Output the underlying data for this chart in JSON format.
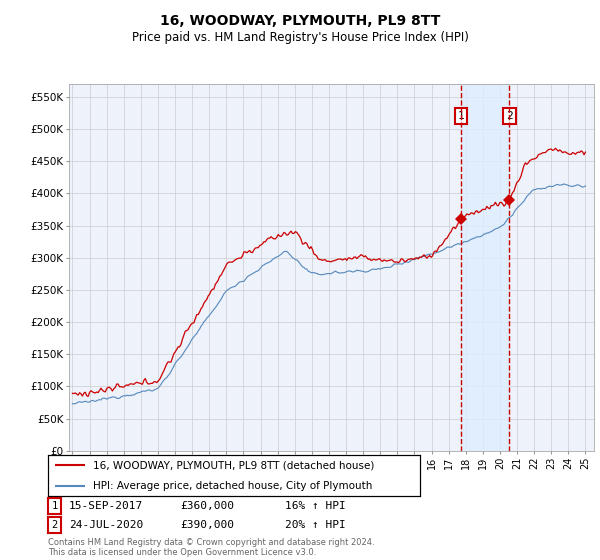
{
  "title": "16, WOODWAY, PLYMOUTH, PL9 8TT",
  "subtitle": "Price paid vs. HM Land Registry's House Price Index (HPI)",
  "ylabel_ticks": [
    "£0",
    "£50K",
    "£100K",
    "£150K",
    "£200K",
    "£250K",
    "£300K",
    "£350K",
    "£400K",
    "£450K",
    "£500K",
    "£550K"
  ],
  "ytick_vals": [
    0,
    50000,
    100000,
    150000,
    200000,
    250000,
    300000,
    350000,
    400000,
    450000,
    500000,
    550000
  ],
  "ylim": [
    0,
    570000
  ],
  "xlim_start": 1994.8,
  "xlim_end": 2025.5,
  "red_line_color": "#cc0000",
  "blue_line_color": "#5588bb",
  "shade_color": "#ddeeff",
  "background_color": "#eef2fb",
  "grid_color": "#cccccc",
  "sale1_x": 2017.708,
  "sale1_y": 360000,
  "sale2_x": 2020.556,
  "sale2_y": 390000,
  "sale1_date": "15-SEP-2017",
  "sale1_price": "£360,000",
  "sale1_hpi": "16% ↑ HPI",
  "sale2_date": "24-JUL-2020",
  "sale2_price": "£390,000",
  "sale2_hpi": "20% ↑ HPI",
  "legend_label1": "16, WOODWAY, PLYMOUTH, PL9 8TT (detached house)",
  "legend_label2": "HPI: Average price, detached house, City of Plymouth",
  "footnote": "Contains HM Land Registry data © Crown copyright and database right 2024.\nThis data is licensed under the Open Government Licence v3.0.",
  "title_fontsize": 10,
  "subtitle_fontsize": 8.5,
  "ann_y": 520000
}
